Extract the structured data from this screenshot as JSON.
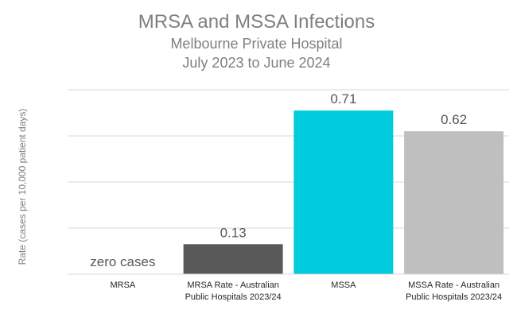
{
  "chart_data": {
    "type": "bar",
    "title": "MRSA and MSSA Infections",
    "subtitle": "Melbourne Private Hospital",
    "subtitle2": "July 2023 to June 2024",
    "xlabel": "",
    "ylabel": "Rate (cases  per 10,000 patient days)",
    "categories": [
      [
        "MRSA"
      ],
      [
        "MRSA Rate - Australian",
        "Public Hospitals 2023/24"
      ],
      [
        "MSSA"
      ],
      [
        "MSSA Rate - Australian",
        "Public Hospitals 2023/24"
      ]
    ],
    "values": [
      0,
      0.13,
      0.71,
      0.62
    ],
    "data_labels": [
      "zero cases",
      "0.13",
      "0.71",
      "0.62"
    ],
    "colors": [
      "#ffffff",
      "#595959",
      "#00ccdd",
      "#bfbfbf"
    ],
    "ylim": [
      0,
      1.0
    ],
    "grid": true,
    "grid_values": [
      0.2,
      0.4,
      0.6,
      0.8
    ],
    "legend": "none"
  }
}
